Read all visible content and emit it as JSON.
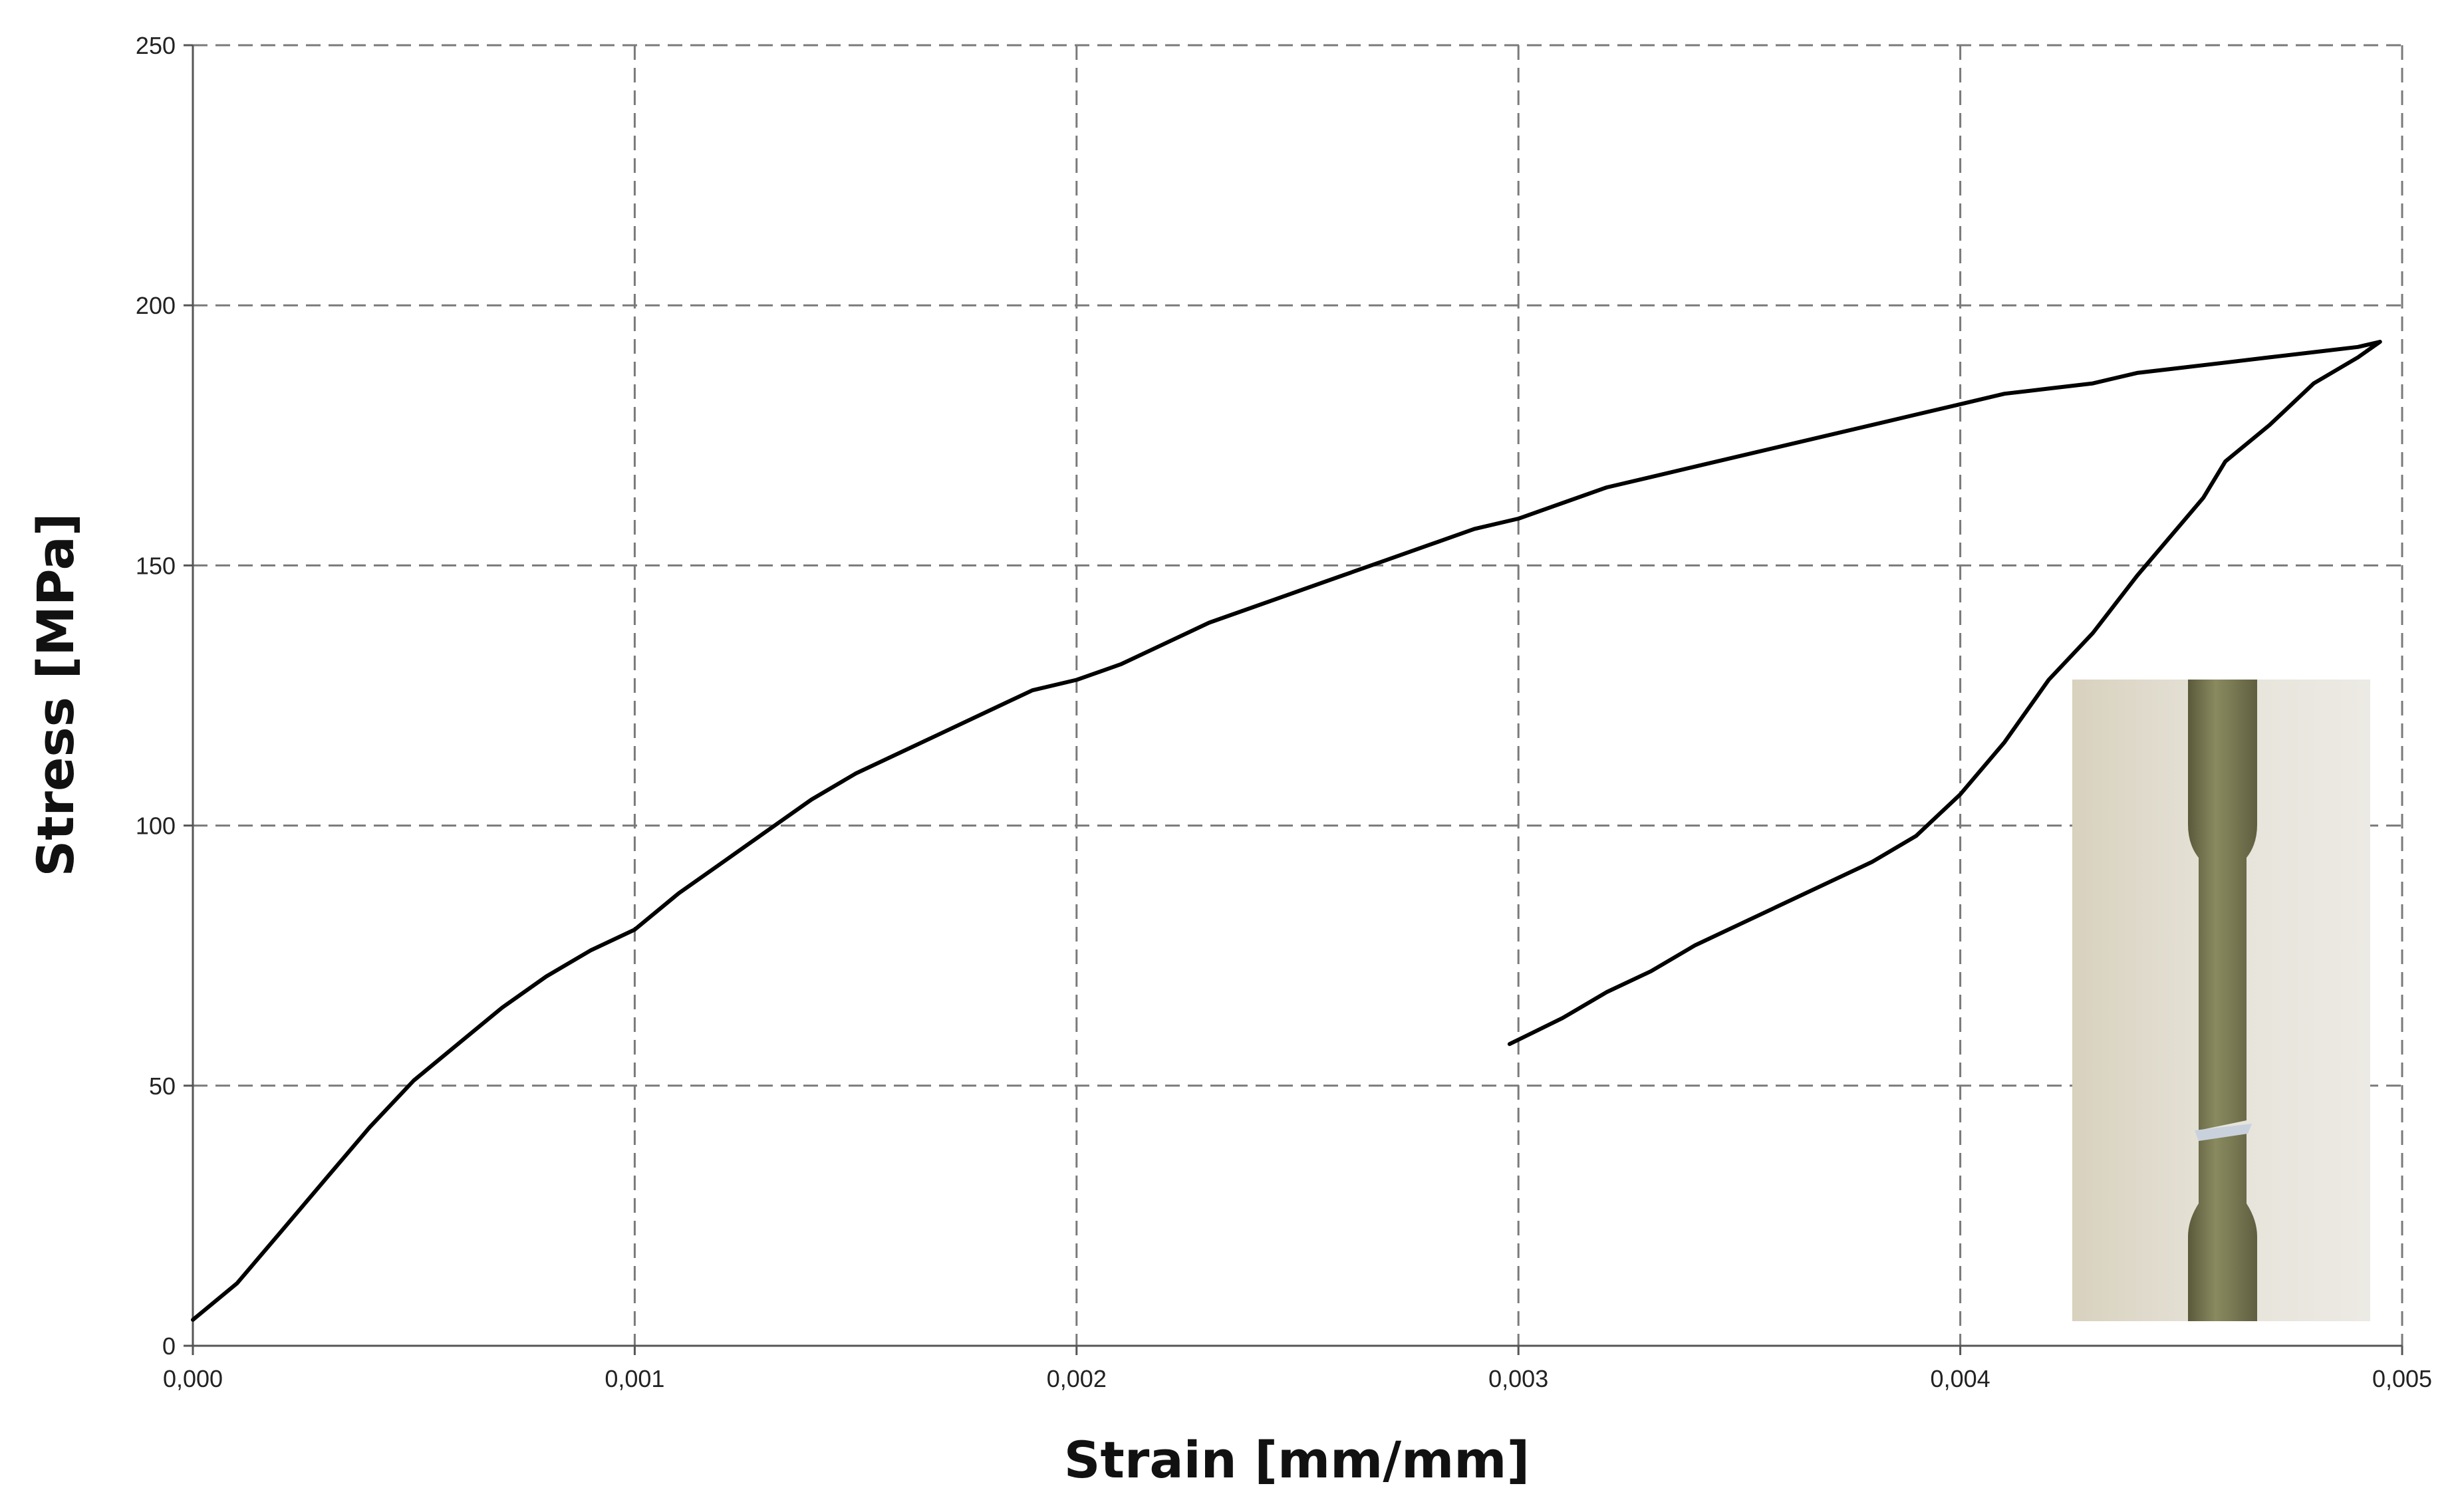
{
  "chart_data": {
    "type": "line",
    "title": "",
    "xlabel": "Strain [mm/mm]",
    "ylabel": "Stress [MPa]",
    "xlim": [
      0,
      0.005
    ],
    "ylim": [
      0,
      250
    ],
    "grid": true,
    "legend": "none",
    "x_ticks": [
      "0,000",
      "0,001",
      "0,002",
      "0,003",
      "0,004",
      "0,005"
    ],
    "y_ticks": [
      "0",
      "50",
      "100",
      "150",
      "200",
      "250"
    ],
    "series": [
      {
        "color": "#000000",
        "x": [
          0.0,
          0.0001,
          0.0002,
          0.0003,
          0.0004,
          0.0005,
          0.0006,
          0.0007,
          0.0008,
          0.0009,
          0.001,
          0.0011,
          0.0012,
          0.0013,
          0.0014,
          0.0015,
          0.0016,
          0.0017,
          0.0018,
          0.0019,
          0.002,
          0.0021,
          0.0022,
          0.0023,
          0.0024,
          0.0025,
          0.0026,
          0.0027,
          0.0028,
          0.0029,
          0.003,
          0.0031,
          0.0032,
          0.0033,
          0.0034,
          0.0035,
          0.0036,
          0.0037,
          0.0038,
          0.0039,
          0.004,
          0.0041,
          0.0042,
          0.0043,
          0.0044,
          0.0045,
          0.0046,
          0.0047,
          0.0048,
          0.0049,
          0.00495,
          0.0049,
          0.0048,
          0.0047,
          0.0046,
          0.00455,
          0.0045,
          0.0044,
          0.0043,
          0.0042,
          0.0041,
          0.004,
          0.0039,
          0.0038,
          0.0037,
          0.0036,
          0.0035,
          0.0034,
          0.0033,
          0.0032,
          0.0031,
          0.00298
        ],
        "y": [
          5,
          12,
          22,
          32,
          42,
          51,
          58,
          65,
          71,
          76,
          80,
          87,
          93,
          99,
          105,
          110,
          114,
          118,
          122,
          126,
          128,
          131,
          135,
          139,
          142,
          145,
          148,
          151,
          154,
          157,
          159,
          162,
          165,
          167,
          169,
          171,
          173,
          175,
          177,
          179,
          181,
          183,
          184,
          185,
          187,
          188,
          189,
          190,
          191,
          192,
          193,
          190,
          185,
          177,
          170,
          163,
          158,
          148,
          137,
          128,
          116,
          106,
          98,
          93,
          89,
          85,
          81,
          77,
          72,
          68,
          63,
          58
        ]
      }
    ]
  }
}
